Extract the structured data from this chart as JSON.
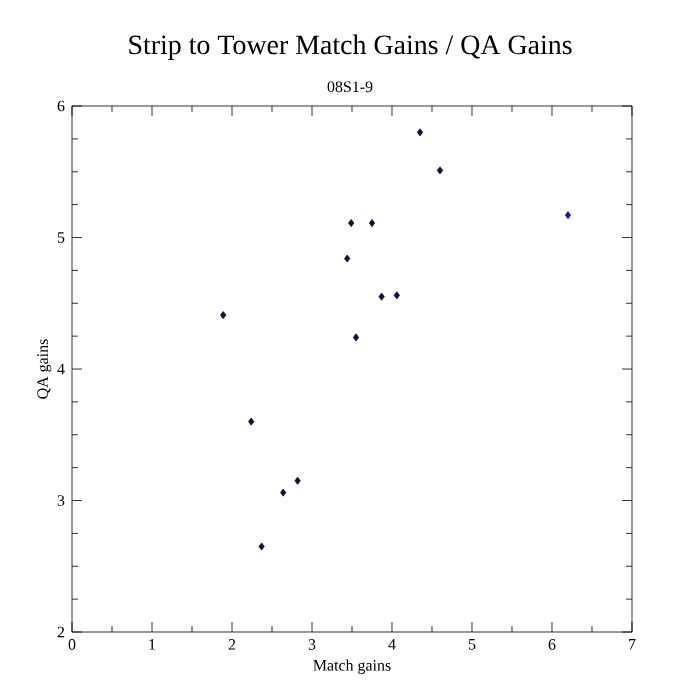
{
  "chart_data": {
    "type": "scatter",
    "title": "Strip to Tower Match Gains / QA Gains",
    "subtitle": "08S1-9",
    "xlabel": "Match gains",
    "ylabel": "QA gains",
    "x": [
      1.89,
      2.24,
      2.37,
      2.64,
      2.82,
      3.44,
      3.49,
      3.55,
      3.75,
      3.87,
      4.06,
      4.35,
      4.6,
      6.2
    ],
    "values": [
      4.41,
      3.6,
      2.65,
      3.06,
      3.15,
      4.84,
      5.11,
      4.24,
      5.11,
      4.55,
      4.56,
      5.8,
      5.51,
      5.17
    ],
    "colors": [
      "#10103a",
      "#10103a",
      "#10103a",
      "#10103a",
      "#10103a",
      "#10103a",
      "#10103a",
      "#10103a",
      "#10103a",
      "#10103a",
      "#10103a",
      "#10103a",
      "#10103a",
      "#1a1aa0"
    ],
    "marker": "diamond",
    "xlim": [
      0,
      7
    ],
    "ylim": [
      2,
      6
    ],
    "xticks": [
      0,
      1,
      2,
      3,
      4,
      5,
      6,
      7
    ],
    "yticks": [
      2,
      3,
      4,
      5,
      6
    ]
  }
}
